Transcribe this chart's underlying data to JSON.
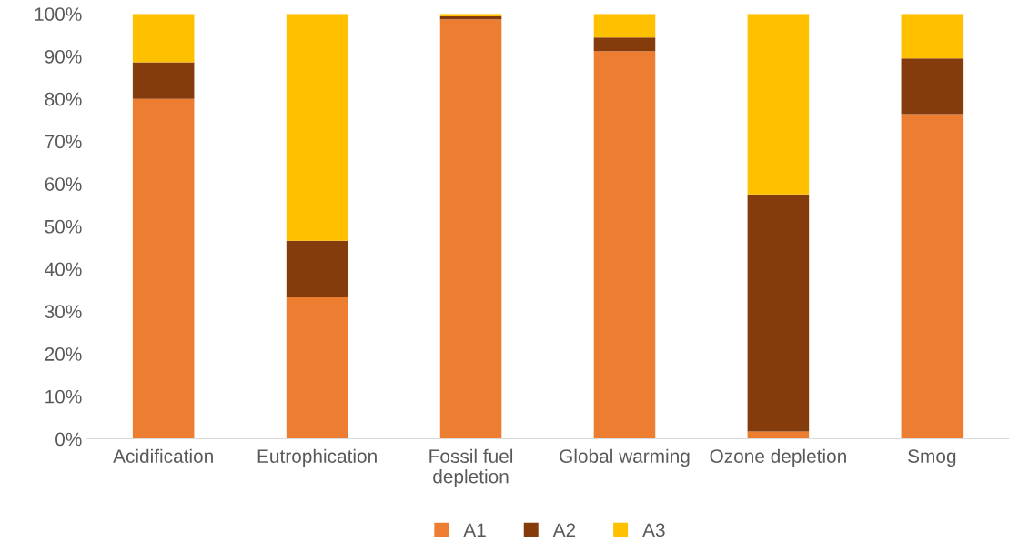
{
  "chart_data": {
    "type": "bar",
    "stacked": true,
    "categories": [
      "Acidification",
      "Eutrophication",
      "Fossil fuel\ndepletion",
      "Global warming",
      "Ozone depletion",
      "Smog"
    ],
    "series": [
      {
        "name": "A1",
        "color": "#ed7d31",
        "values": [
          80,
          33.3,
          98.7,
          91.2,
          1.7,
          76.4
        ]
      },
      {
        "name": "A2",
        "color": "#843c0c",
        "values": [
          8.6,
          13.3,
          0.7,
          3.2,
          55.8,
          13.1
        ]
      },
      {
        "name": "A3",
        "color": "#ffc000",
        "values": [
          11.4,
          53.4,
          0.6,
          5.6,
          42.5,
          10.5
        ]
      }
    ],
    "ylim": [
      0,
      100
    ],
    "yticks": [
      {
        "value": 0,
        "label": "0%"
      },
      {
        "value": 10,
        "label": "10%"
      },
      {
        "value": 20,
        "label": "20%"
      },
      {
        "value": 30,
        "label": "30%"
      },
      {
        "value": 40,
        "label": "40%"
      },
      {
        "value": 50,
        "label": "50%"
      },
      {
        "value": 60,
        "label": "60%"
      },
      {
        "value": 70,
        "label": "70%"
      },
      {
        "value": 80,
        "label": "80%"
      },
      {
        "value": 90,
        "label": "90%"
      },
      {
        "value": 100,
        "label": "100%"
      }
    ],
    "grid": false,
    "legend": "bottom"
  }
}
